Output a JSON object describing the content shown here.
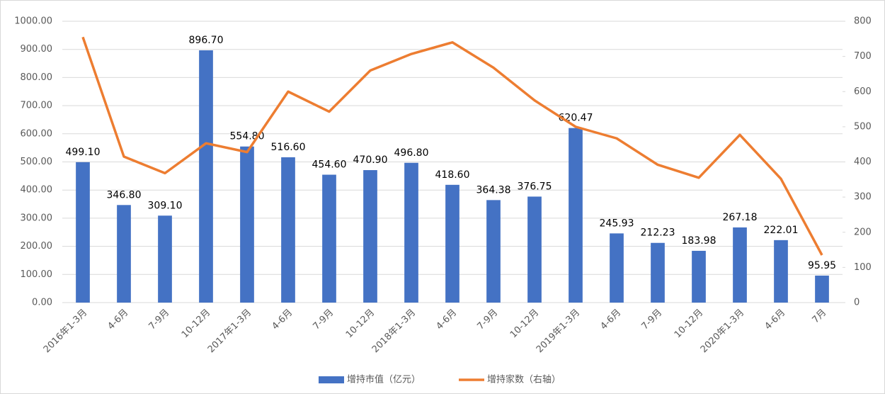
{
  "chart_data": {
    "type": "bar",
    "categories": [
      "2016年1-3月",
      "4-6月",
      "7-9月",
      "10-12月",
      "2017年1-3月",
      "4-6月",
      "7-9月",
      "10-12月",
      "2018年1-3月",
      "4-6月",
      "7-9月",
      "10-12月",
      "2019年1-3月",
      "4-6月",
      "7-9月",
      "10-12月",
      "2020年1-3月",
      "4-6月",
      "7月"
    ],
    "series": [
      {
        "name": "增持市值（亿元）",
        "type": "bar",
        "color": "#4472c4",
        "values": [
          499.1,
          346.8,
          309.1,
          896.7,
          554.8,
          516.6,
          454.6,
          470.9,
          496.8,
          418.6,
          364.38,
          376.75,
          620.47,
          245.93,
          212.23,
          183.98,
          267.18,
          222.01,
          95.95
        ],
        "value_labels": [
          "499.10",
          "346.80",
          "309.10",
          "896.70",
          "554.80",
          "516.60",
          "454.60",
          "470.90",
          "496.80",
          "418.60",
          "364.38",
          "376.75",
          "620.47",
          "245.93",
          "212.23",
          "183.98",
          "267.18",
          "222.01",
          "95.95"
        ]
      },
      {
        "name": "增持家数（右轴）",
        "type": "line",
        "axis": "y2",
        "color": "#ed7d31",
        "values": [
          755,
          415,
          368,
          453,
          428,
          600,
          543,
          660,
          707,
          740,
          668,
          575,
          500,
          467,
          392,
          355,
          477,
          352,
          135
        ]
      }
    ],
    "ylim": [
      0,
      1000
    ],
    "yticks": [
      {
        "value": 0,
        "label": "0.00"
      },
      {
        "value": 100,
        "label": "100.00"
      },
      {
        "value": 200,
        "label": "200.00"
      },
      {
        "value": 300,
        "label": "300.00"
      },
      {
        "value": 400,
        "label": "400.00"
      },
      {
        "value": 500,
        "label": "500.00"
      },
      {
        "value": 600,
        "label": "600.00"
      },
      {
        "value": 700,
        "label": "700.00"
      },
      {
        "value": 800,
        "label": "800.00"
      },
      {
        "value": 900,
        "label": "900.00"
      },
      {
        "value": 1000,
        "label": "1000.00"
      }
    ],
    "y2lim": [
      0,
      800
    ],
    "y2ticks": [
      0,
      100,
      200,
      300,
      400,
      500,
      600,
      700,
      800
    ],
    "grid": true,
    "legend": "bottom"
  }
}
